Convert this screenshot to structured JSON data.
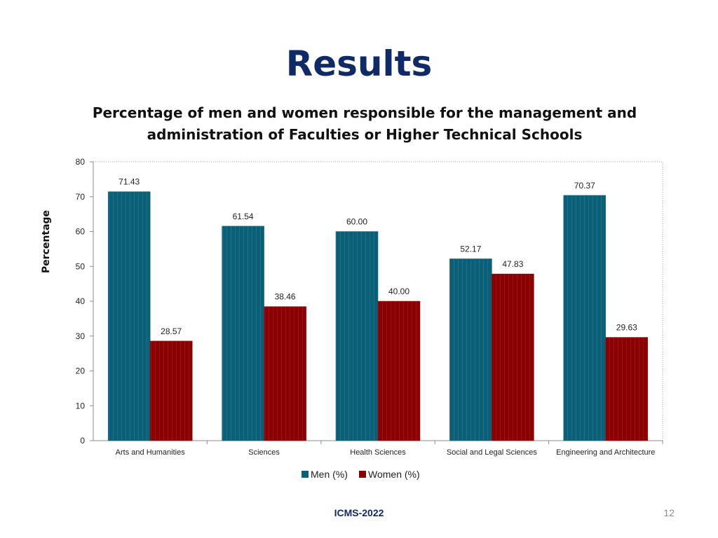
{
  "slide": {
    "title": "Results",
    "footer": "ICMS-2022",
    "page_number": "12"
  },
  "chart_data": {
    "type": "bar",
    "title_lines": [
      "Percentage of men and women responsible for the management and",
      "administration of Faculties or Higher Technical Schools"
    ],
    "xlabel": "",
    "ylabel": "Percentage",
    "ylim": [
      0,
      80
    ],
    "yticks": [
      0,
      10,
      20,
      30,
      40,
      50,
      60,
      70,
      80
    ],
    "grid": false,
    "legend_position": "bottom",
    "categories": [
      "Arts and Humanities",
      "Sciences",
      "Health Sciences",
      "Social and Legal Sciences",
      "Engineering and Architecture"
    ],
    "series": [
      {
        "name": "Men (%)",
        "color": "#0b6078",
        "values": [
          71.43,
          61.54,
          60.0,
          52.17,
          70.37
        ],
        "labels": [
          "71.43",
          "61.54",
          "60.00",
          "52.17",
          "70.37"
        ]
      },
      {
        "name": "Women (%)",
        "color": "#8b0000",
        "values": [
          28.57,
          38.46,
          40.0,
          47.83,
          29.63
        ],
        "labels": [
          "28.57",
          "38.46",
          "40.00",
          "47.83",
          "29.63"
        ]
      }
    ]
  }
}
